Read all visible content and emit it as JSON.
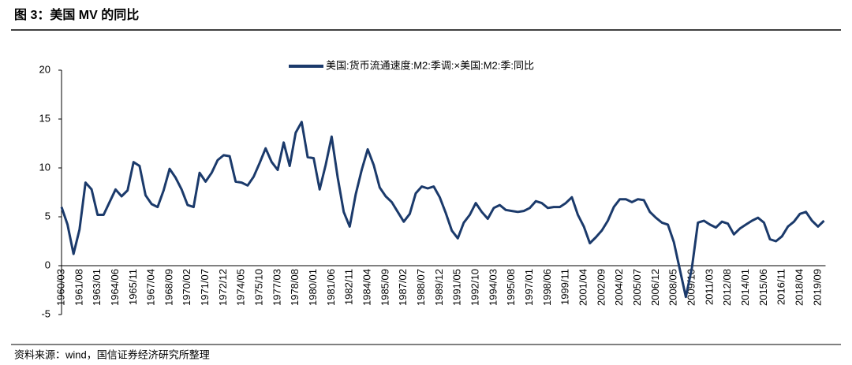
{
  "chart_data": {
    "type": "line",
    "title": "图 3：美国 MV 的同比",
    "source": "资料来源：wind，国信证券经济研究所整理",
    "categories": [
      "1960/03",
      null,
      null,
      "1961/08",
      null,
      null,
      "1963/01",
      null,
      null,
      "1964/06",
      null,
      null,
      "1965/11",
      null,
      null,
      "1967/04",
      null,
      null,
      "1968/09",
      null,
      null,
      "1970/02",
      null,
      null,
      "1971/07",
      null,
      null,
      "1972/12",
      null,
      null,
      "1974/05",
      null,
      null,
      "1975/10",
      null,
      null,
      "1977/03",
      null,
      null,
      "1978/08",
      null,
      null,
      "1980/01",
      null,
      null,
      "1981/06",
      null,
      null,
      "1982/11",
      null,
      null,
      "1984/04",
      null,
      null,
      "1985/09",
      null,
      null,
      "1987/02",
      null,
      null,
      "1988/07",
      null,
      null,
      "1989/12",
      null,
      null,
      "1991/05",
      null,
      null,
      "1992/10",
      null,
      null,
      "1994/03",
      null,
      null,
      "1995/08",
      null,
      null,
      "1997/01",
      null,
      null,
      "1998/06",
      null,
      null,
      "1999/11",
      null,
      null,
      "2001/04",
      null,
      null,
      "2002/09",
      null,
      null,
      "2004/02",
      null,
      null,
      "2005/07",
      null,
      null,
      "2006/12",
      null,
      null,
      "2008/05",
      null,
      null,
      "2009/10",
      null,
      null,
      "2011/03",
      null,
      null,
      "2012/08",
      null,
      null,
      "2014/01",
      null,
      null,
      "2015/06",
      null,
      null,
      "2016/11",
      null,
      null,
      "2018/04",
      null,
      null,
      "2019/09",
      null
    ],
    "series": [
      {
        "name": "美国:货币流通速度:M2:季调:×美国:M2:季:同比",
        "color": "#1b3a6b",
        "values": [
          6.0,
          4.2,
          1.2,
          3.7,
          8.5,
          7.8,
          5.2,
          5.2,
          6.5,
          7.8,
          7.1,
          7.7,
          10.6,
          10.2,
          7.2,
          6.3,
          6.0,
          7.7,
          9.9,
          9.0,
          7.8,
          6.2,
          6.0,
          9.5,
          8.6,
          9.5,
          10.8,
          11.3,
          11.2,
          8.6,
          8.5,
          8.2,
          9.1,
          10.5,
          12.0,
          10.6,
          9.8,
          12.6,
          10.2,
          13.6,
          14.7,
          11.1,
          11.0,
          7.8,
          10.3,
          13.2,
          9.0,
          5.5,
          4.0,
          7.3,
          9.8,
          11.9,
          10.3,
          8.0,
          7.1,
          6.5,
          5.5,
          4.5,
          5.3,
          7.4,
          8.1,
          7.9,
          8.1,
          7.0,
          5.4,
          3.6,
          2.8,
          4.4,
          5.2,
          6.4,
          5.5,
          4.8,
          5.9,
          6.2,
          5.7,
          5.6,
          5.5,
          5.6,
          5.9,
          6.6,
          6.4,
          5.9,
          6.0,
          6.0,
          6.4,
          7.0,
          5.2,
          4.0,
          2.3,
          2.9,
          3.6,
          4.6,
          6.0,
          6.8,
          6.8,
          6.5,
          6.8,
          6.7,
          5.5,
          4.9,
          4.4,
          4.2,
          2.4,
          -0.4,
          -3.2,
          -0.2,
          4.4,
          4.6,
          4.2,
          3.9,
          4.5,
          4.3,
          3.2,
          3.8,
          4.2,
          4.6,
          4.9,
          4.4,
          2.7,
          2.5,
          3.0,
          4.0,
          4.5,
          5.3,
          5.5,
          4.6,
          4.0,
          4.6
        ]
      }
    ],
    "ylim": [
      -5,
      20
    ],
    "yticks": [
      -5,
      0,
      5,
      10,
      15,
      20
    ],
    "grid": false,
    "legend": "top"
  }
}
